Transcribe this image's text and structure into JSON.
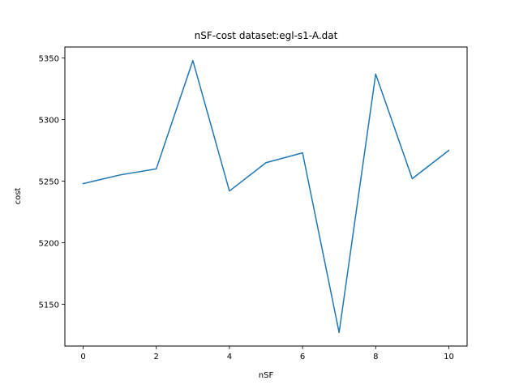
{
  "chart_data": {
    "type": "line",
    "title": "nSF-cost  dataset:egl-s1-A.dat",
    "xlabel": "nSF",
    "ylabel": "cost",
    "x": [
      0,
      1,
      2,
      3,
      4,
      5,
      6,
      7,
      8,
      9,
      10
    ],
    "series": [
      {
        "values": [
          5248,
          5255,
          5260,
          5348,
          5242,
          5265,
          5273,
          5127,
          5337,
          5252,
          5275
        ],
        "color": "#1f77b4"
      }
    ],
    "xlim": [
      -0.5,
      10.5
    ],
    "ylim": [
      5116,
      5359
    ],
    "xticks": [
      0,
      2,
      4,
      6,
      8,
      10
    ],
    "yticks": [
      5150,
      5200,
      5250,
      5300,
      5350
    ],
    "grid": false
  }
}
